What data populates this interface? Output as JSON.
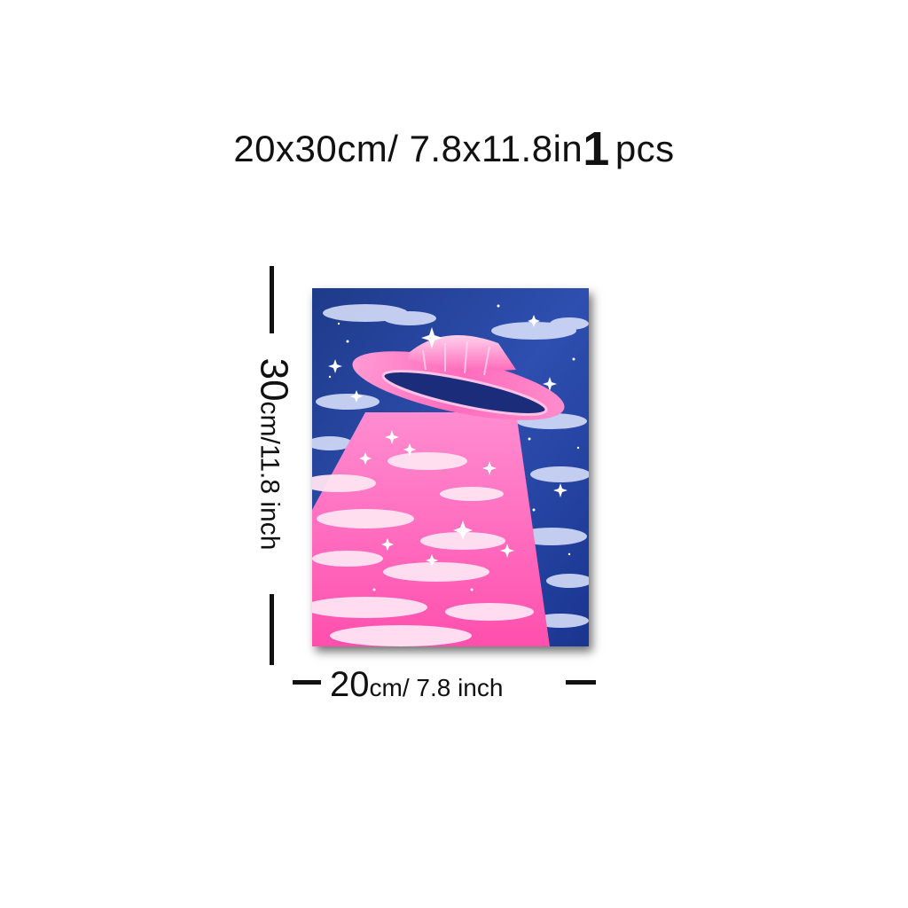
{
  "headline": {
    "size_cm": "20x30cm/",
    "size_in": " 7.8x11.8in",
    "count": "1",
    "unit": "pcs"
  },
  "height_label": {
    "value": "30",
    "unit_text": "cm/11.8 inch"
  },
  "width_label": {
    "value": "20",
    "unit_text": "cm/ 7.8 inch"
  },
  "poster": {
    "subject": "pink UFO beaming light over clouds in a starry blue night sky",
    "colors": {
      "sky_dark": "#1e3a8a",
      "sky_mid": "#3b5fc4",
      "beam_pink": "#ff5fb8",
      "ufo_pink": "#ff7fc4",
      "cloud": "#f4f6ff"
    }
  }
}
